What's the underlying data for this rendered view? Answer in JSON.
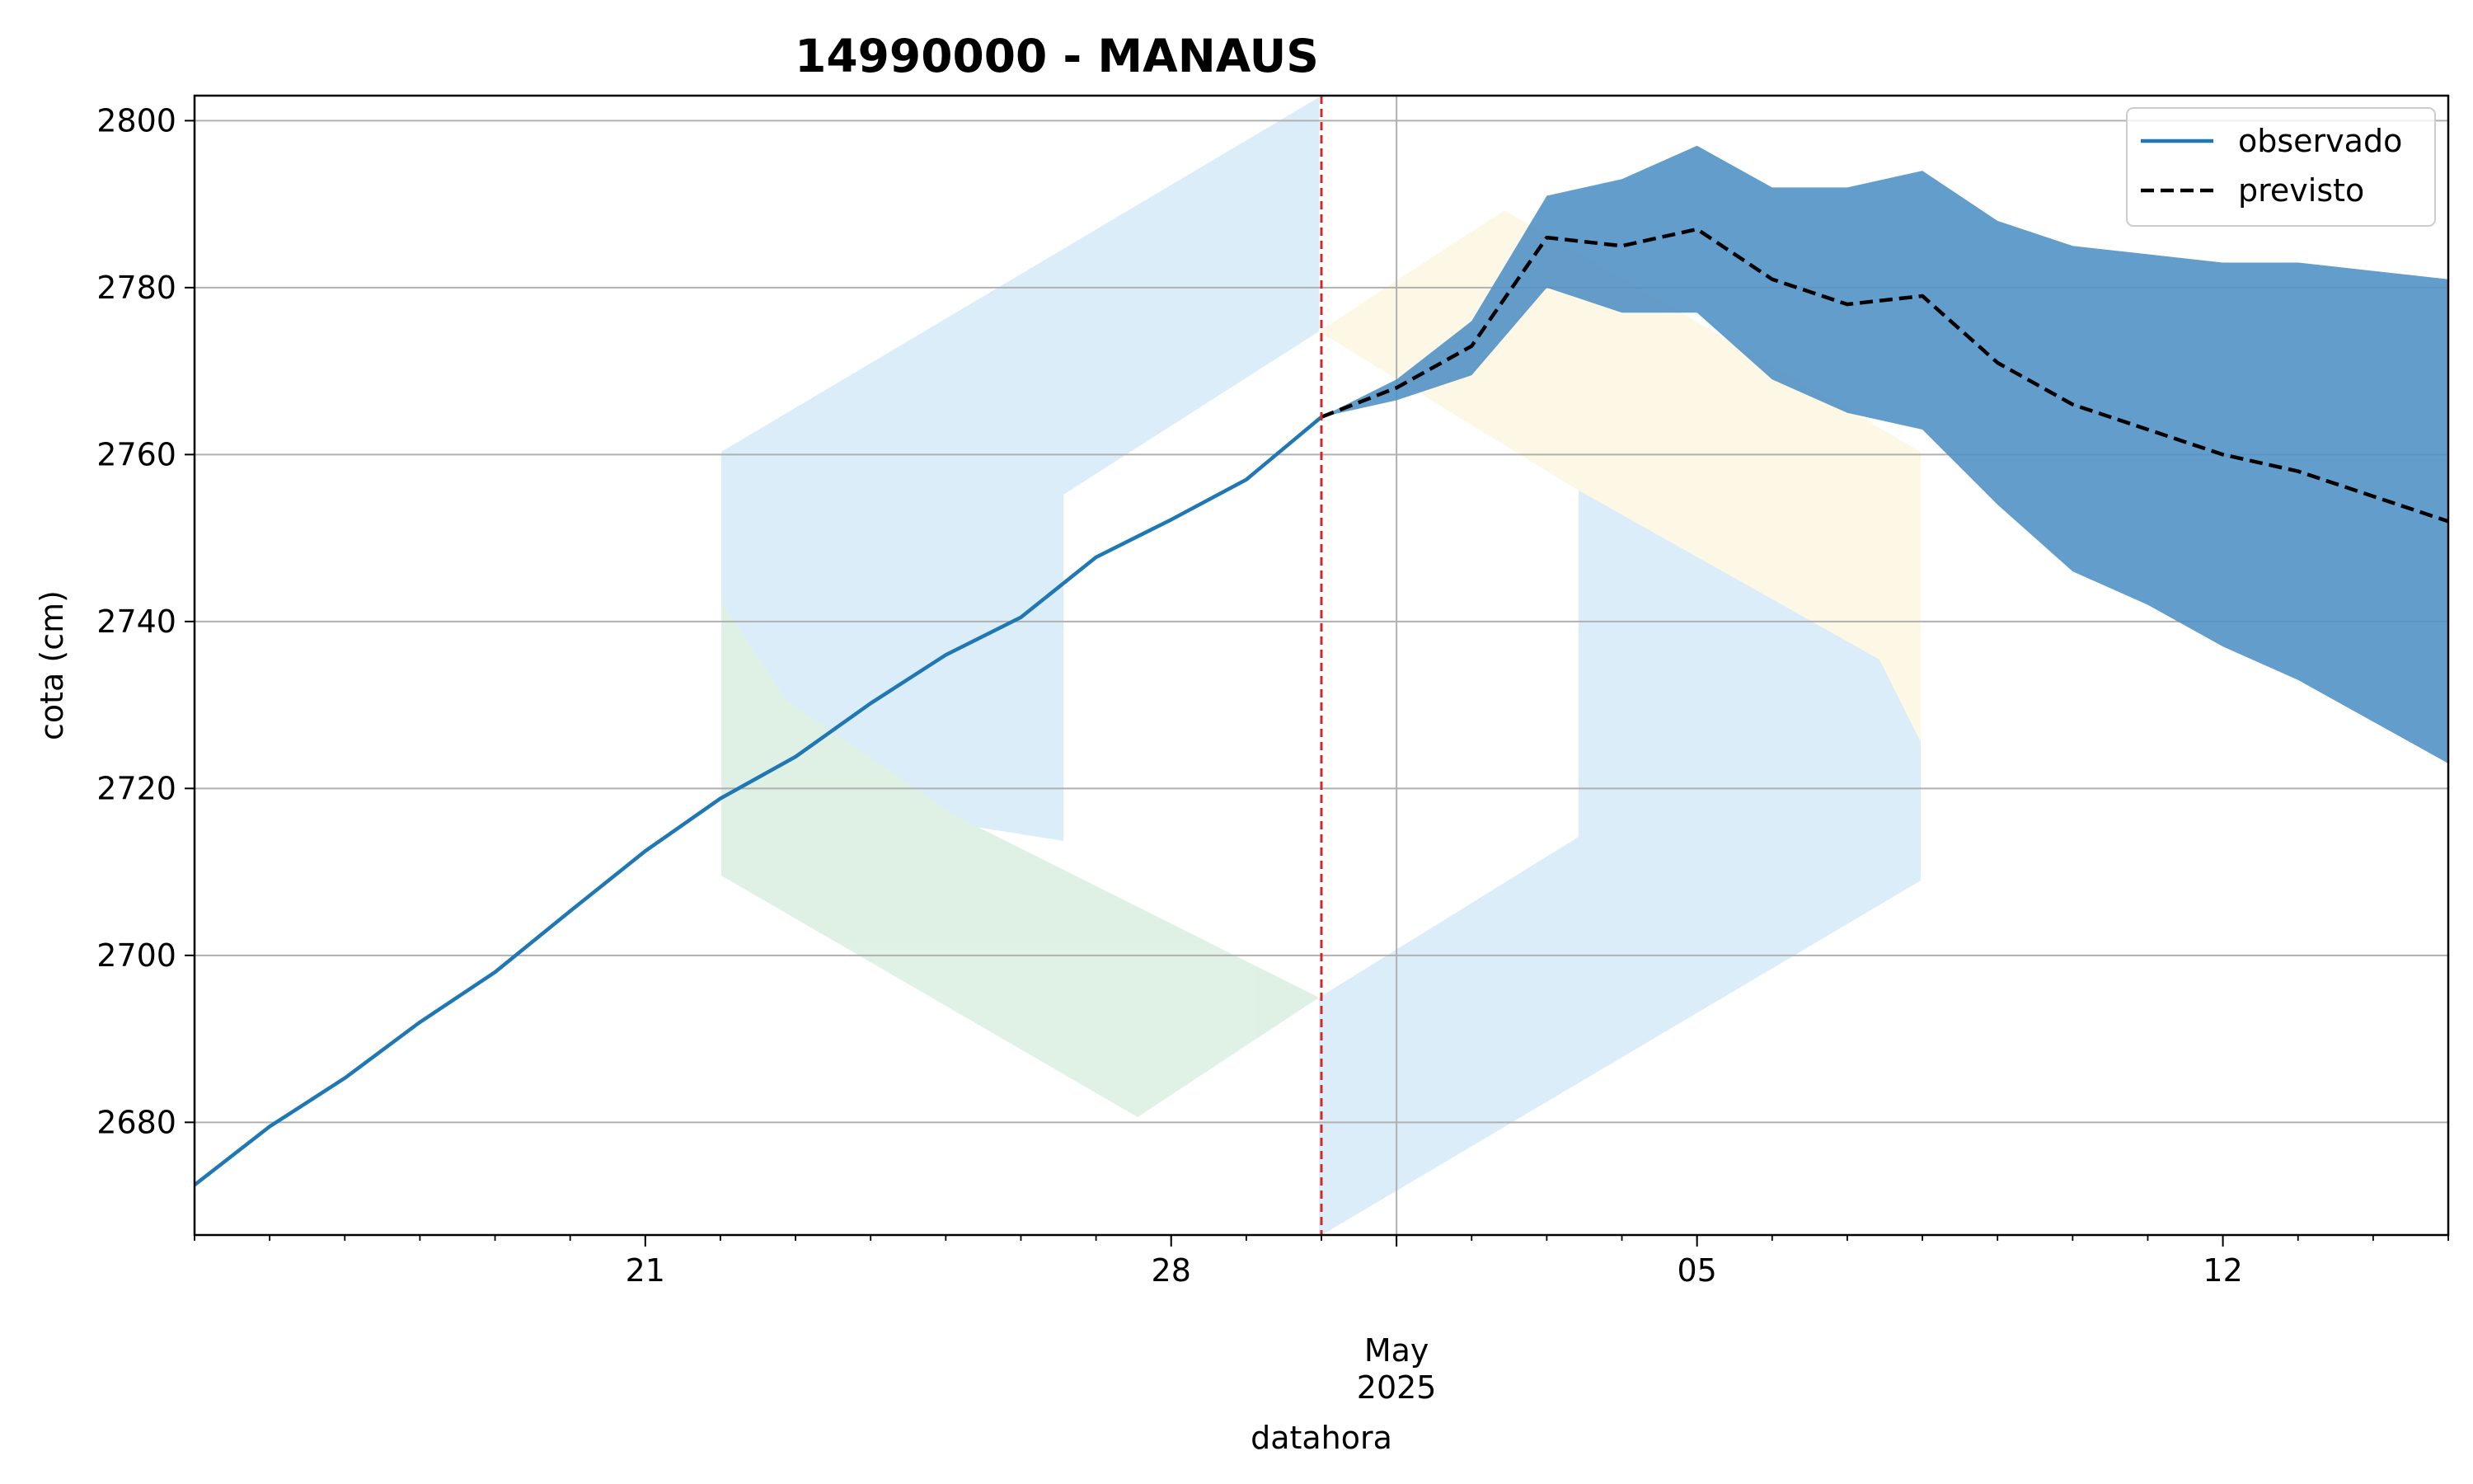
{
  "chart_data": {
    "type": "line",
    "title": "14990000 - MANAUS",
    "xlabel": "datahora",
    "ylabel": "cota (cm)",
    "x_range": [
      "2025-04-15",
      "2025-05-15"
    ],
    "ylim": [
      2666.5,
      2803
    ],
    "y_ticks": [
      2680,
      2700,
      2720,
      2740,
      2760,
      2780,
      2800
    ],
    "x_major_ticks": [
      {
        "date": "2025-04-21",
        "label": "21"
      },
      {
        "date": "2025-04-28",
        "label": "28"
      },
      {
        "date": "2025-05-05",
        "label": "05"
      },
      {
        "date": "2025-05-12",
        "label": "12"
      }
    ],
    "x_month_tick": {
      "date": "2025-05-01",
      "label_line1": "May",
      "label_line2": "2025"
    },
    "grid": true,
    "legend_position": "top-right",
    "forecast_start": "2025-04-30",
    "forecast_marker_color": "#d62728",
    "series": [
      {
        "name": "observado",
        "style": "solid",
        "color": "#1f77b4",
        "points": [
          [
            "2025-04-15",
            2672.5
          ],
          [
            "2025-04-16",
            2679.5
          ],
          [
            "2025-04-17",
            2685.3
          ],
          [
            "2025-04-18",
            2692
          ],
          [
            "2025-04-19",
            2698
          ],
          [
            "2025-04-20",
            2705.3
          ],
          [
            "2025-04-21",
            2712.5
          ],
          [
            "2025-04-22",
            2718.8
          ],
          [
            "2025-04-23",
            2723.8
          ],
          [
            "2025-04-24",
            2730.2
          ],
          [
            "2025-04-25",
            2736
          ],
          [
            "2025-04-26",
            2740.5
          ],
          [
            "2025-04-27",
            2747.7
          ],
          [
            "2025-04-28",
            2752.2
          ],
          [
            "2025-04-29",
            2757
          ],
          [
            "2025-04-30",
            2764.5
          ]
        ]
      },
      {
        "name": "previsto",
        "style": "dashed",
        "color": "#000000",
        "points": [
          [
            "2025-04-30",
            2764.5
          ],
          [
            "2025-05-01",
            2768
          ],
          [
            "2025-05-02",
            2773
          ],
          [
            "2025-05-03",
            2786
          ],
          [
            "2025-05-04",
            2785
          ],
          [
            "2025-05-05",
            2787
          ],
          [
            "2025-05-06",
            2781
          ],
          [
            "2025-05-07",
            2778
          ],
          [
            "2025-05-08",
            2779
          ],
          [
            "2025-05-09",
            2771
          ],
          [
            "2025-05-10",
            2766
          ],
          [
            "2025-05-11",
            2763
          ],
          [
            "2025-05-12",
            2760
          ],
          [
            "2025-05-13",
            2758
          ],
          [
            "2025-05-14",
            2755
          ],
          [
            "2025-05-15",
            2752
          ]
        ]
      }
    ],
    "band": {
      "color": "#4d8fc4",
      "upper": [
        [
          "2025-04-30",
          2764.5
        ],
        [
          "2025-05-01",
          2769
        ],
        [
          "2025-05-02",
          2776
        ],
        [
          "2025-05-03",
          2791
        ],
        [
          "2025-05-04",
          2793
        ],
        [
          "2025-05-05",
          2797
        ],
        [
          "2025-05-06",
          2792
        ],
        [
          "2025-05-07",
          2792
        ],
        [
          "2025-05-08",
          2794
        ],
        [
          "2025-05-09",
          2788
        ],
        [
          "2025-05-10",
          2785
        ],
        [
          "2025-05-11",
          2784
        ],
        [
          "2025-05-12",
          2783
        ],
        [
          "2025-05-13",
          2783
        ],
        [
          "2025-05-14",
          2782
        ],
        [
          "2025-05-15",
          2781
        ]
      ],
      "lower": [
        [
          "2025-04-30",
          2764.5
        ],
        [
          "2025-05-01",
          2766.5
        ],
        [
          "2025-05-02",
          2769.5
        ],
        [
          "2025-05-03",
          2780
        ],
        [
          "2025-05-04",
          2777
        ],
        [
          "2025-05-05",
          2777
        ],
        [
          "2025-05-06",
          2769
        ],
        [
          "2025-05-07",
          2765
        ],
        [
          "2025-05-08",
          2763
        ],
        [
          "2025-05-09",
          2754
        ],
        [
          "2025-05-10",
          2746
        ],
        [
          "2025-05-11",
          2742
        ],
        [
          "2025-05-12",
          2737
        ],
        [
          "2025-05-13",
          2733
        ],
        [
          "2025-05-14",
          2728
        ],
        [
          "2025-05-15",
          2723
        ]
      ]
    }
  }
}
